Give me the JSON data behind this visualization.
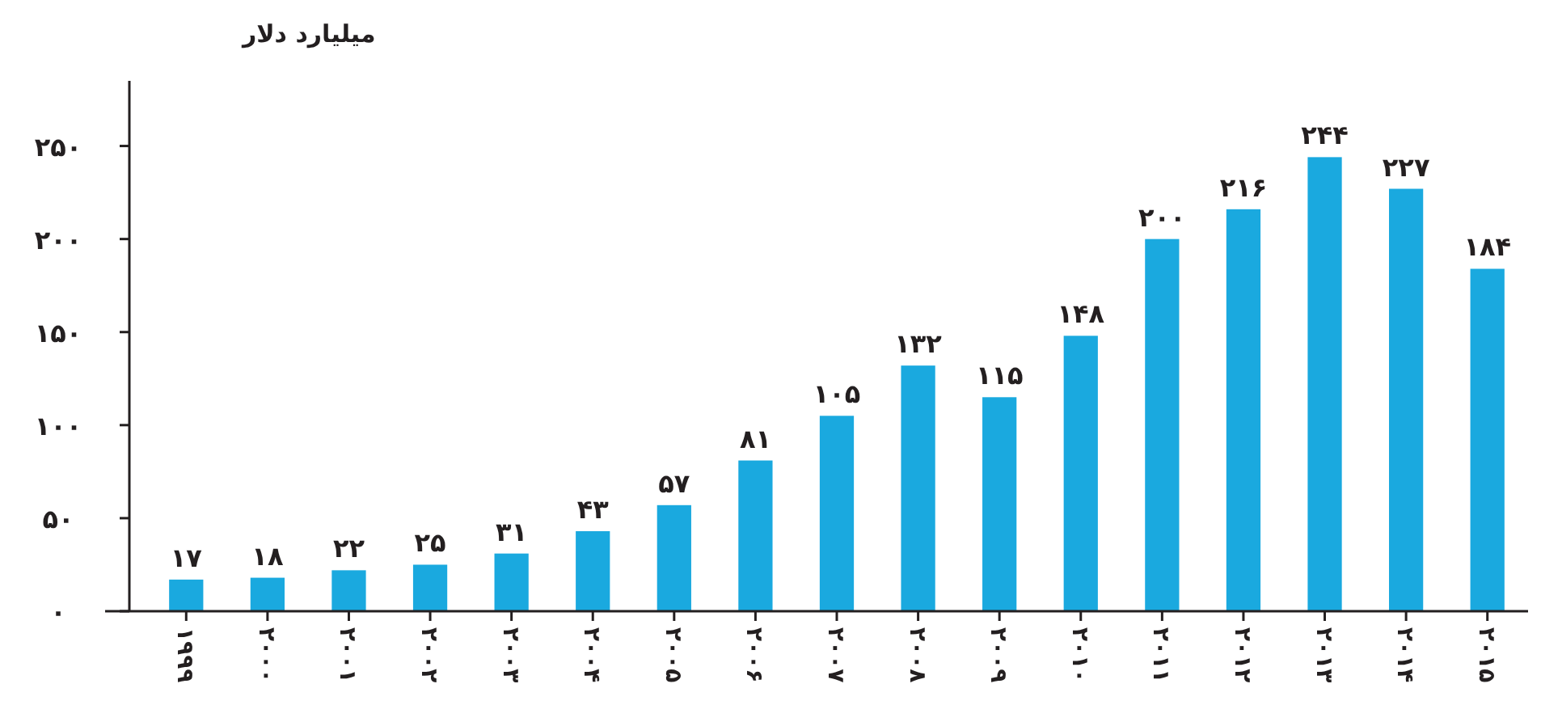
{
  "chart_data": {
    "type": "bar",
    "ylabel": "میلیارد دلار",
    "categories": [
      "۱۹۹۹",
      "۲۰۰۰",
      "۲۰۰۱",
      "۲۰۰۲",
      "۲۰۰۳",
      "۲۰۰۴",
      "۲۰۰۵",
      "۲۰۰۶",
      "۲۰۰۷",
      "۲۰۰۸",
      "۲۰۰۹",
      "۲۰۱۰",
      "۲۰۱۱",
      "۲۰۱۲",
      "۲۰۱۳",
      "۲۰۱۴",
      "۲۰۱۵"
    ],
    "values": [
      17,
      18,
      22,
      25,
      31,
      43,
      57,
      81,
      105,
      132,
      115,
      148,
      200,
      216,
      244,
      227,
      184
    ],
    "value_labels": [
      "۱۷",
      "۱۸",
      "۲۲",
      "۲۵",
      "۳۱",
      "۴۳",
      "۵۷",
      "۸۱",
      "۱۰۵",
      "۱۳۲",
      "۱۱۵",
      "۱۴۸",
      "۲۰۰",
      "۲۱۶",
      "۲۴۴",
      "۲۲۷",
      "۱۸۴"
    ],
    "color": "#1aa9df",
    "ylim": [
      0,
      285
    ],
    "yticks": [
      {
        "value": 0,
        "label": "۰"
      },
      {
        "value": 50,
        "label": "۵۰"
      },
      {
        "value": 100,
        "label": "۱۰۰"
      },
      {
        "value": 150,
        "label": "۱۵۰"
      },
      {
        "value": 200,
        "label": "۲۰۰"
      },
      {
        "value": 250,
        "label": "۲۵۰"
      }
    ],
    "grid": false
  }
}
